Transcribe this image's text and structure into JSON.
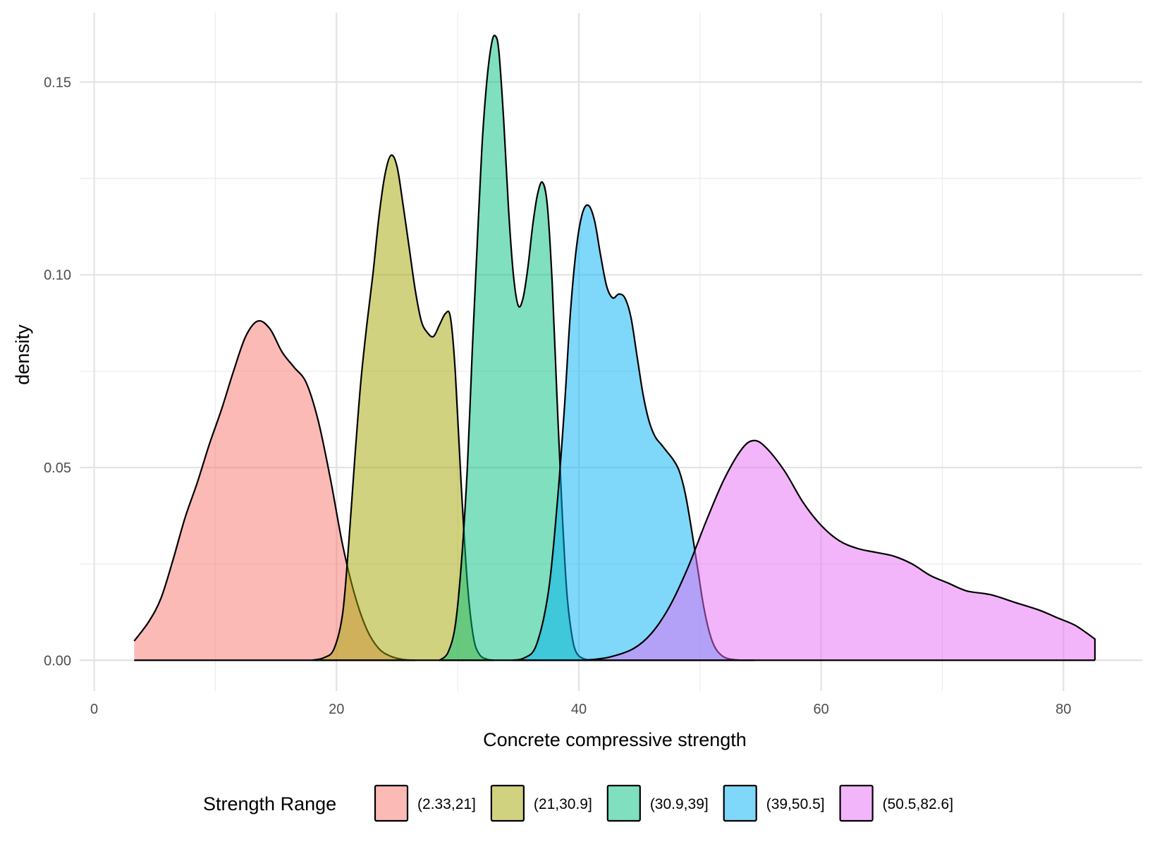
{
  "chart_data": {
    "type": "area",
    "subtype": "density",
    "title": "",
    "xlabel": "Concrete compressive strength",
    "ylabel": "density",
    "xlim": [
      -1.2,
      86.5
    ],
    "ylim": [
      -0.008,
      0.168
    ],
    "x_ticks": [
      0,
      20,
      40,
      60,
      80
    ],
    "x_tick_labels": [
      "0",
      "20",
      "40",
      "60",
      "80"
    ],
    "y_ticks": [
      0.0,
      0.05,
      0.1,
      0.15
    ],
    "y_tick_labels": [
      "0.00",
      "0.05",
      "0.10",
      "0.15"
    ],
    "grid": true,
    "legend": {
      "title": "Strength Range",
      "position": "bottom"
    },
    "fill_opacity": 0.5,
    "series": [
      {
        "name": "(2.33,21]",
        "color": "#F8766D",
        "x": [
          3.3,
          4.5,
          5.5,
          6.5,
          7.5,
          8.5,
          9.5,
          10.5,
          11.5,
          12.5,
          13.5,
          14.5,
          15.5,
          16.5,
          17.5,
          18.5,
          19.5,
          20.5,
          21.5,
          22.5,
          23.5,
          24.5,
          25.5,
          26.5
        ],
        "y": [
          0.005,
          0.01,
          0.016,
          0.026,
          0.037,
          0.046,
          0.056,
          0.065,
          0.075,
          0.084,
          0.088,
          0.086,
          0.08,
          0.076,
          0.072,
          0.062,
          0.047,
          0.03,
          0.017,
          0.008,
          0.003,
          0.001,
          0.0002,
          0.0
        ]
      },
      {
        "name": "(21,30.9]",
        "color": "#A3A500",
        "x": [
          18.0,
          19.0,
          19.8,
          20.5,
          21.0,
          21.5,
          22.0,
          22.5,
          23.0,
          23.5,
          24.0,
          24.5,
          25.0,
          25.5,
          26.0,
          26.5,
          27.0,
          27.5,
          28.0,
          28.5,
          29.0,
          29.4,
          29.8,
          30.3,
          30.8,
          31.3,
          31.8,
          32.4,
          33.0
        ],
        "y": [
          0.0,
          0.0007,
          0.003,
          0.012,
          0.03,
          0.052,
          0.072,
          0.087,
          0.1,
          0.115,
          0.126,
          0.131,
          0.128,
          0.118,
          0.107,
          0.096,
          0.088,
          0.085,
          0.084,
          0.087,
          0.09,
          0.089,
          0.075,
          0.045,
          0.02,
          0.006,
          0.0015,
          0.0003,
          0.0
        ]
      },
      {
        "name": "(30.9,39]",
        "color": "#00BF7D",
        "x": [
          28.5,
          29.2,
          29.8,
          30.3,
          30.8,
          31.2,
          31.6,
          32.0,
          32.4,
          32.8,
          33.1,
          33.4,
          33.8,
          34.2,
          34.6,
          35.0,
          35.4,
          35.8,
          36.2,
          36.6,
          37.0,
          37.4,
          37.8,
          38.2,
          38.6,
          39.0,
          39.4,
          39.8,
          40.5,
          41.5
        ],
        "y": [
          0.0,
          0.002,
          0.009,
          0.025,
          0.05,
          0.08,
          0.107,
          0.133,
          0.15,
          0.16,
          0.162,
          0.158,
          0.14,
          0.117,
          0.1,
          0.092,
          0.094,
          0.102,
          0.113,
          0.121,
          0.124,
          0.118,
          0.098,
          0.068,
          0.04,
          0.018,
          0.007,
          0.002,
          0.0003,
          0.0
        ]
      },
      {
        "name": "(39,50.5]",
        "color": "#00B0F6",
        "x": [
          34.5,
          35.5,
          36.5,
          37.5,
          38.2,
          38.8,
          39.3,
          39.8,
          40.3,
          40.8,
          41.3,
          41.8,
          42.3,
          42.8,
          43.3,
          43.8,
          44.3,
          44.8,
          45.3,
          45.8,
          46.3,
          46.8,
          47.3,
          47.8,
          48.3,
          48.8,
          49.3,
          49.8,
          50.3,
          50.8,
          51.3,
          52.0,
          53.0,
          54.5
        ],
        "y": [
          0.0,
          0.0006,
          0.004,
          0.018,
          0.04,
          0.065,
          0.09,
          0.107,
          0.116,
          0.118,
          0.114,
          0.105,
          0.097,
          0.094,
          0.095,
          0.094,
          0.089,
          0.079,
          0.069,
          0.062,
          0.058,
          0.056,
          0.054,
          0.052,
          0.049,
          0.043,
          0.034,
          0.024,
          0.014,
          0.007,
          0.003,
          0.0008,
          0.0001,
          0.0
        ]
      },
      {
        "name": "(50.5,82.6]",
        "color": "#E76BF3",
        "x": [
          40.5,
          42.5,
          44.5,
          46.0,
          47.5,
          49.0,
          50.5,
          52.0,
          53.5,
          54.5,
          55.5,
          57.0,
          58.5,
          60.0,
          61.5,
          63.0,
          64.5,
          66.0,
          67.5,
          69.0,
          70.5,
          72.0,
          74.0,
          76.0,
          78.0,
          79.5,
          81.0,
          82.6
        ],
        "y": [
          0.0,
          0.0008,
          0.003,
          0.007,
          0.014,
          0.024,
          0.036,
          0.047,
          0.055,
          0.057,
          0.055,
          0.049,
          0.041,
          0.035,
          0.031,
          0.029,
          0.028,
          0.027,
          0.025,
          0.022,
          0.02,
          0.018,
          0.017,
          0.015,
          0.013,
          0.011,
          0.009,
          0.0055
        ]
      }
    ]
  }
}
